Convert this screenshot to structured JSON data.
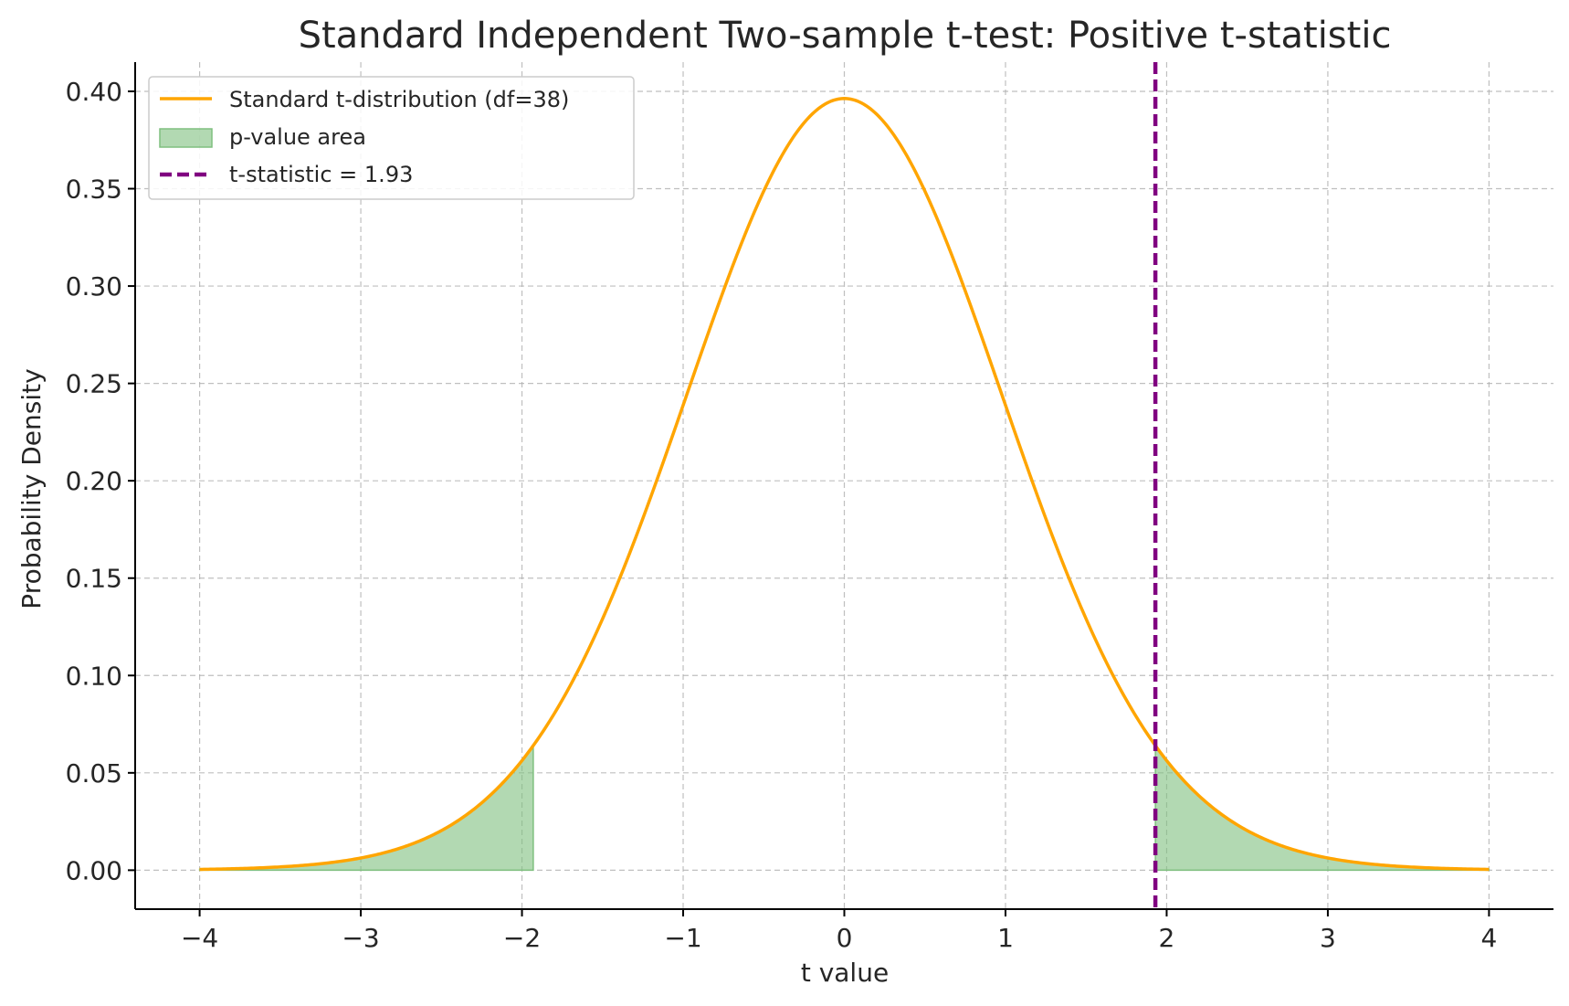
{
  "chart_data": {
    "type": "line",
    "title": "Standard Independent Two-sample t-test: Positive t-statistic",
    "xlabel": "t value",
    "ylabel": "Probability Density",
    "xlim": [
      -4.4,
      4.4
    ],
    "ylim": [
      -0.02,
      0.415
    ],
    "grid": true,
    "legend_position": "top-left",
    "x_ticks": [
      -4,
      -3,
      -2,
      -1,
      0,
      1,
      2,
      3,
      4
    ],
    "x_tick_labels": [
      "−4",
      "−3",
      "−2",
      "−1",
      "0",
      "1",
      "2",
      "3",
      "4"
    ],
    "y_ticks": [
      0.0,
      0.05,
      0.1,
      0.15,
      0.2,
      0.25,
      0.3,
      0.35,
      0.4
    ],
    "y_tick_labels": [
      "0.00",
      "0.05",
      "0.10",
      "0.15",
      "0.20",
      "0.25",
      "0.30",
      "0.35",
      "0.40"
    ],
    "series": [
      {
        "name": "Standard t-distribution (df=38)",
        "kind": "line",
        "color": "#FFA500",
        "df": 38,
        "x_range": [
          -4,
          4
        ],
        "x": [
          -4.0,
          -3.5,
          -3.0,
          -2.5,
          -2.0,
          -1.5,
          -1.0,
          -0.5,
          0.0,
          0.5,
          1.0,
          1.5,
          2.0,
          2.5,
          3.0,
          3.5,
          4.0
        ],
        "y": [
          0.001,
          0.002,
          0.006,
          0.019,
          0.055,
          0.128,
          0.239,
          0.35,
          0.396,
          0.35,
          0.239,
          0.128,
          0.055,
          0.019,
          0.006,
          0.002,
          0.001
        ]
      },
      {
        "name": "p-value area",
        "kind": "area",
        "color": "#7fbf7f",
        "regions": [
          [
            -4,
            -1.93
          ],
          [
            1.93,
            4
          ]
        ]
      },
      {
        "name": "t-statistic = 1.93",
        "kind": "vline",
        "color": "#800080",
        "x": 1.93
      }
    ]
  }
}
